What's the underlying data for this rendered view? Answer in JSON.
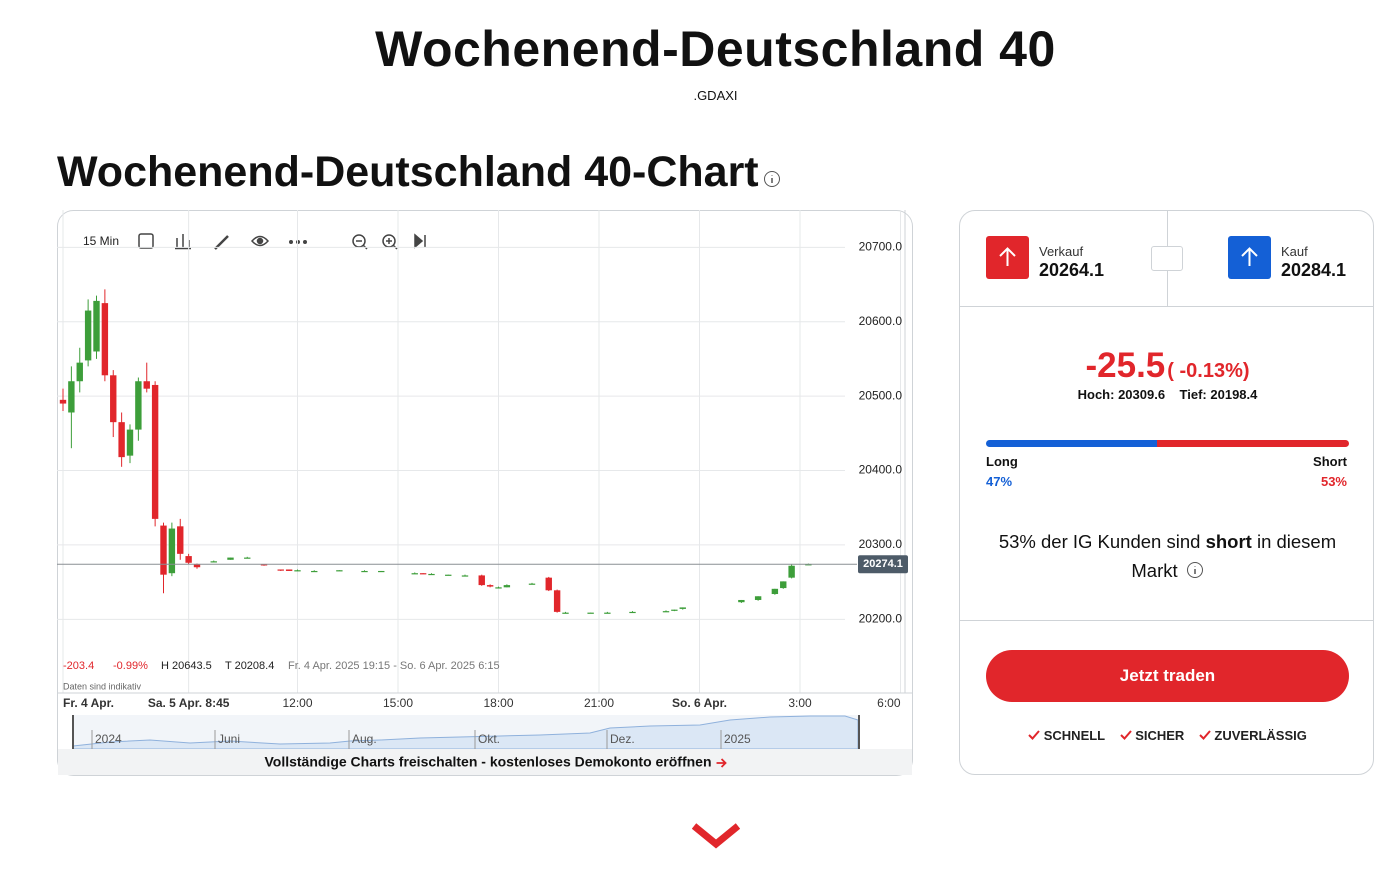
{
  "header": {
    "title": "Wochenend-Deutschland 40",
    "symbol": ".GDAXI"
  },
  "section_title": "Wochenend-Deutschland 40-Chart",
  "chart_data": {
    "type": "candlestick",
    "interval": "15 Min",
    "categories": [
      "Fr. 4 Apr.",
      null,
      null,
      null,
      null,
      null,
      null,
      null,
      null,
      null,
      null,
      null,
      null,
      null,
      null,
      "Sa. 5 Apr. 8:45",
      null,
      null,
      null,
      null,
      null,
      null,
      null,
      null,
      null,
      null,
      null,
      null,
      "12:00",
      null,
      null,
      null,
      null,
      null,
      null,
      null,
      null,
      null,
      null,
      null,
      "15:00",
      null,
      null,
      null,
      null,
      null,
      null,
      null,
      null,
      null,
      null,
      null,
      "18:00",
      null,
      null,
      null,
      null,
      null,
      null,
      null,
      null,
      null,
      null,
      null,
      "21:00",
      null,
      null,
      null,
      null,
      null,
      null,
      null,
      null,
      null,
      null,
      null,
      "So. 6 Apr.",
      null,
      null,
      null,
      null,
      null,
      null,
      null,
      null,
      null,
      null,
      null,
      "3:00",
      null,
      null,
      null,
      null,
      null,
      null,
      null,
      null,
      null,
      null,
      null,
      "6:00"
    ],
    "open": [
      20495,
      20478,
      20520,
      20548,
      20560,
      20625,
      20528,
      20465,
      20420,
      20455,
      20520,
      20515,
      20326,
      20262,
      20325,
      20285,
      20274,
      null,
      20278,
      null,
      20280,
      null,
      20283,
      null,
      20274,
      null,
      20267,
      20267,
      20266,
      null,
      20265,
      null,
      null,
      20266,
      null,
      null,
      20265,
      null,
      20265,
      null,
      null,
      null,
      20262,
      20262,
      20261,
      null,
      20260,
      null,
      20259,
      null,
      20259,
      20246,
      20243,
      20243,
      null,
      null,
      20248,
      null,
      20256,
      20239,
      20209,
      null,
      null,
      20209,
      null,
      20209,
      null,
      null,
      20210,
      null,
      null,
      null,
      20211,
      20212,
      20214,
      null,
      null,
      null,
      null,
      null,
      null,
      20223,
      null,
      20226,
      null,
      20234,
      20242,
      20256,
      null,
      20274,
      null,
      null,
      null,
      null,
      null,
      null,
      null,
      null,
      null,
      null,
      null
    ],
    "high": [
      20510,
      20540,
      20565,
      20630,
      20635,
      20643.5,
      20535,
      20478,
      20462,
      20525,
      20545,
      20520,
      20330,
      20330,
      20335,
      20288,
      20275,
      null,
      20279,
      null,
      20283,
      null,
      20284,
      null,
      20274,
      null,
      20267,
      20267,
      20267,
      null,
      20266,
      null,
      null,
      20266,
      null,
      null,
      20266,
      null,
      20265,
      null,
      null,
      null,
      20263,
      20262,
      20262,
      null,
      20260,
      null,
      20260,
      null,
      20260,
      20247,
      20244,
      20247,
      null,
      null,
      20249,
      null,
      20257,
      20240,
      20210,
      null,
      null,
      20209,
      null,
      20210,
      null,
      null,
      20211,
      null,
      null,
      null,
      20212,
      20213,
      20216,
      null,
      null,
      null,
      null,
      null,
      null,
      20226,
      null,
      20231,
      null,
      20241,
      20251,
      20274,
      null,
      20275,
      null,
      null,
      null,
      null,
      null,
      null,
      null,
      null,
      null,
      null,
      null
    ],
    "low": [
      20480,
      20430,
      20505,
      20540,
      20550,
      20520,
      20445,
      20405,
      20410,
      20440,
      20505,
      20325,
      20235,
      20258,
      20280,
      20274,
      20268,
      null,
      20277,
      null,
      20280,
      null,
      20282,
      null,
      20272,
      null,
      20265,
      20265,
      20265,
      null,
      20264,
      null,
      null,
      20265,
      null,
      null,
      20264,
      null,
      20264,
      null,
      null,
      null,
      20261,
      20261,
      20260,
      null,
      20259,
      null,
      20258,
      null,
      20245,
      20243,
      20242,
      20243,
      null,
      null,
      20247,
      null,
      20238,
      20209,
      20208.4,
      null,
      null,
      20208.5,
      null,
      20208.5,
      null,
      null,
      20209,
      null,
      null,
      null,
      20210,
      20211,
      20213,
      null,
      null,
      null,
      null,
      null,
      null,
      20222,
      null,
      20225,
      null,
      20233,
      20241,
      20255,
      null,
      20273,
      null,
      null,
      null,
      null,
      null,
      null,
      null,
      null,
      null,
      null,
      null
    ],
    "close": [
      20490,
      20520,
      20545,
      20615,
      20628,
      20528,
      20465,
      20418,
      20455,
      20520,
      20510,
      20335,
      20260,
      20322,
      20288,
      20276,
      20270,
      null,
      20278,
      null,
      20283,
      null,
      20283,
      null,
      20273,
      null,
      20266,
      20265,
      20266,
      null,
      20265,
      null,
      null,
      20266,
      null,
      null,
      20265,
      null,
      20265,
      null,
      null,
      null,
      20262,
      20261,
      20261,
      null,
      20260,
      null,
      20259,
      null,
      20246,
      20244,
      20243,
      20246,
      null,
      null,
      20248,
      null,
      20239,
      20210,
      20209,
      null,
      null,
      20209,
      null,
      20209,
      null,
      null,
      20210,
      null,
      null,
      null,
      20211,
      20213,
      20216,
      null,
      null,
      null,
      null,
      null,
      null,
      20226,
      null,
      20231,
      null,
      20241,
      20251,
      20272,
      null,
      20274.1,
      null,
      null,
      null,
      null,
      null,
      null,
      null,
      null,
      null,
      null,
      null
    ],
    "up_color": "#3d9e3a",
    "down_color": "#e1262b",
    "ylim": [
      20105,
      20730
    ],
    "yticks": [
      {
        "value": 20200,
        "label": "20200.0"
      },
      {
        "value": 20300,
        "label": "20300.0"
      },
      {
        "value": 20400,
        "label": "20400.0"
      },
      {
        "value": 20500,
        "label": "20500.0"
      },
      {
        "value": 20600,
        "label": "20600.0"
      },
      {
        "value": 20700,
        "label": "20700.0"
      }
    ],
    "grid": true,
    "current_price": 20274.1,
    "stats": {
      "change": "-203.4",
      "change_pct": "-0.99%",
      "high": "H 20643.5",
      "low": "T 20208.4",
      "range": "Fr. 4 Apr. 2025 19:15 - So. 6 Apr. 2025 6:15"
    },
    "note": "Daten sind indikativ",
    "navigator_labels": [
      "2024",
      "Juni",
      "Aug.",
      "Okt.",
      "Dez.",
      "2025"
    ],
    "cta": "Vollständige Charts freischalten - kostenloses Demokonto eröffnen"
  },
  "quote": {
    "sell_label": "Verkauf",
    "sell": 20264.1,
    "buy_label": "Kauf",
    "buy": 20284.1,
    "change": "-25.5",
    "change_pct": "( -0.13%)",
    "high_label": "Hoch:",
    "high": 20309.6,
    "low_label": "Tief:",
    "low": 20198.4,
    "long": {
      "label": "Long",
      "value": 47,
      "value_label": "47%"
    },
    "short": {
      "label": "Short",
      "value": 53,
      "value_label": "53%"
    },
    "sentiment_text": [
      "53% der IG Kunden sind ",
      "short",
      " in diesem Markt"
    ],
    "button": "Jetzt traden",
    "features": [
      "SCHNELL",
      "SICHER",
      "ZUVERLÄSSIG"
    ]
  }
}
